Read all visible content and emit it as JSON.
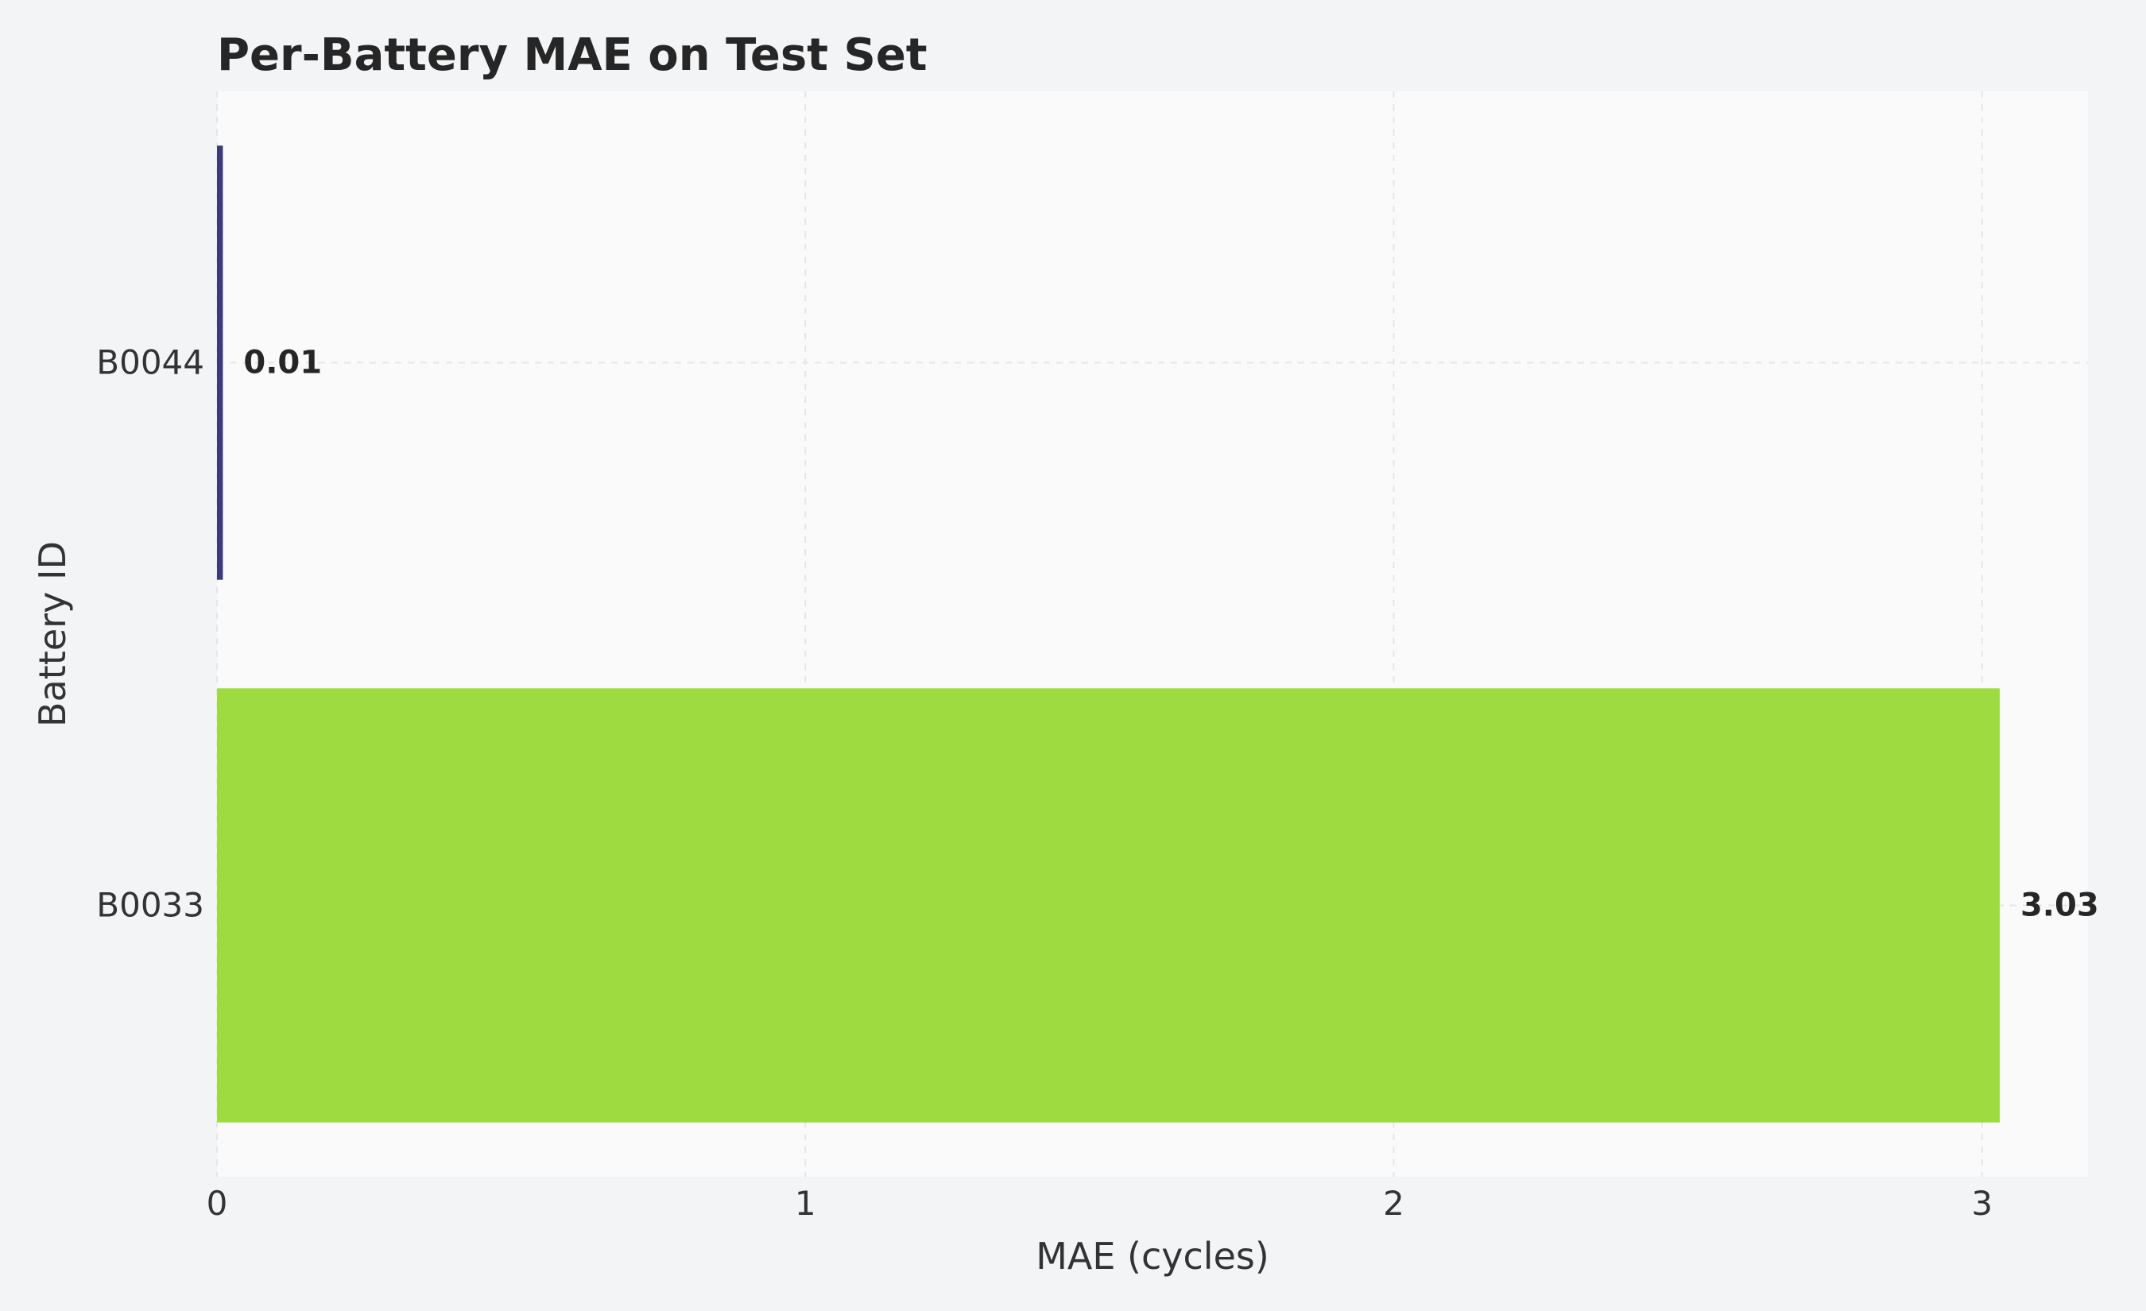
{
  "chart_data": {
    "type": "bar",
    "orientation": "horizontal",
    "title": "Per-Battery MAE on Test Set",
    "xlabel": "MAE (cycles)",
    "ylabel": "Battery ID",
    "categories": [
      "B0044",
      "B0033"
    ],
    "values": [
      0.01,
      3.03
    ],
    "value_labels": [
      "0.01",
      "3.03"
    ],
    "bar_colors": [
      "#3b3b7a",
      "#9edb40"
    ],
    "xlim": [
      0,
      3.18
    ],
    "xticks": [
      0,
      1,
      2,
      3
    ],
    "xtick_labels": [
      "0",
      "1",
      "2",
      "3"
    ],
    "grid": true,
    "legend": "none",
    "plot_background": "#fafafa",
    "page_background": "#f3f4f6"
  }
}
